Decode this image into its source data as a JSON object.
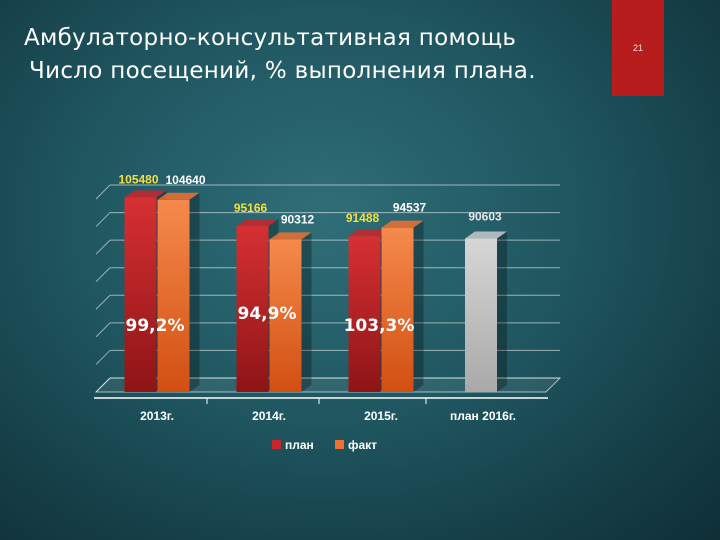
{
  "slide": {
    "title_line1": "Амбулаторно-консультативная помощь",
    "title_line2": "Число посещений, % выполнения плана.",
    "page_number": "21"
  },
  "colors": {
    "plan": "#c8262a",
    "fact": "#ee7033",
    "plan_2016": "#c9c9c9",
    "plan_label": "#f3e03a",
    "fact_label": "#ffffff",
    "percent_label": "#ffffff"
  },
  "chart_data": {
    "type": "bar",
    "categories": [
      "2013г.",
      "2014г.",
      "2015г.",
      "план 2016г."
    ],
    "series": [
      {
        "name": "план",
        "values": [
          105480,
          95166,
          91488,
          90603
        ]
      },
      {
        "name": "факт",
        "values": [
          104640,
          90312,
          94537,
          null
        ]
      }
    ],
    "percent_labels": [
      "99,2%",
      "94,9%",
      "103,3%"
    ],
    "value_labels": {
      "plan": [
        "105480",
        "95166",
        "91488",
        "90603"
      ],
      "fact": [
        "104640",
        "90312",
        "94537",
        ""
      ]
    },
    "ylim": [
      35000,
      110000
    ],
    "grid": true,
    "legend": "bottom"
  }
}
